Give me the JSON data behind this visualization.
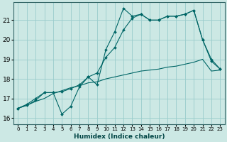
{
  "xlabel": "Humidex (Indice chaleur)",
  "background_color": "#cce8e4",
  "grid_color": "#99cccc",
  "line_color": "#006666",
  "xlim": [
    -0.5,
    23.5
  ],
  "ylim": [
    15.7,
    21.9
  ],
  "yticks": [
    16,
    17,
    18,
    19,
    20,
    21
  ],
  "xticks": [
    0,
    1,
    2,
    3,
    4,
    5,
    6,
    7,
    8,
    9,
    10,
    11,
    12,
    13,
    14,
    15,
    16,
    17,
    18,
    19,
    20,
    21,
    22,
    23
  ],
  "series1_x": [
    0,
    1,
    2,
    3,
    4,
    5,
    6,
    7,
    8,
    9,
    10,
    11,
    12,
    13,
    14,
    15,
    16,
    17,
    18,
    19,
    20,
    21,
    22,
    23
  ],
  "series1_y": [
    16.5,
    16.7,
    17.0,
    17.3,
    17.3,
    16.2,
    16.6,
    17.6,
    18.1,
    17.7,
    19.5,
    20.4,
    21.6,
    21.2,
    21.3,
    21.0,
    21.0,
    21.2,
    21.2,
    21.3,
    21.5,
    20.0,
    19.0,
    18.5
  ],
  "series3_x": [
    0,
    1,
    2,
    3,
    4,
    5,
    6,
    7,
    8,
    9,
    10,
    11,
    12,
    13,
    14,
    15,
    16,
    17,
    18,
    19,
    20,
    21,
    22,
    23
  ],
  "series3_y": [
    16.5,
    16.65,
    16.85,
    17.0,
    17.25,
    17.4,
    17.55,
    17.65,
    17.8,
    17.85,
    18.0,
    18.1,
    18.2,
    18.3,
    18.4,
    18.45,
    18.5,
    18.6,
    18.65,
    18.75,
    18.85,
    19.0,
    18.4,
    18.45
  ],
  "series2_x": [
    0,
    1,
    2,
    3,
    4,
    5,
    6,
    7,
    8,
    9,
    10,
    11,
    12,
    13,
    14,
    15,
    16,
    17,
    18,
    19,
    20,
    21,
    22,
    23
  ],
  "series2_y": [
    16.5,
    16.65,
    16.9,
    17.3,
    17.3,
    17.35,
    17.5,
    17.7,
    18.1,
    18.3,
    19.1,
    19.6,
    20.5,
    21.1,
    21.3,
    21.0,
    21.0,
    21.2,
    21.2,
    21.3,
    21.5,
    20.0,
    18.9,
    18.5
  ]
}
